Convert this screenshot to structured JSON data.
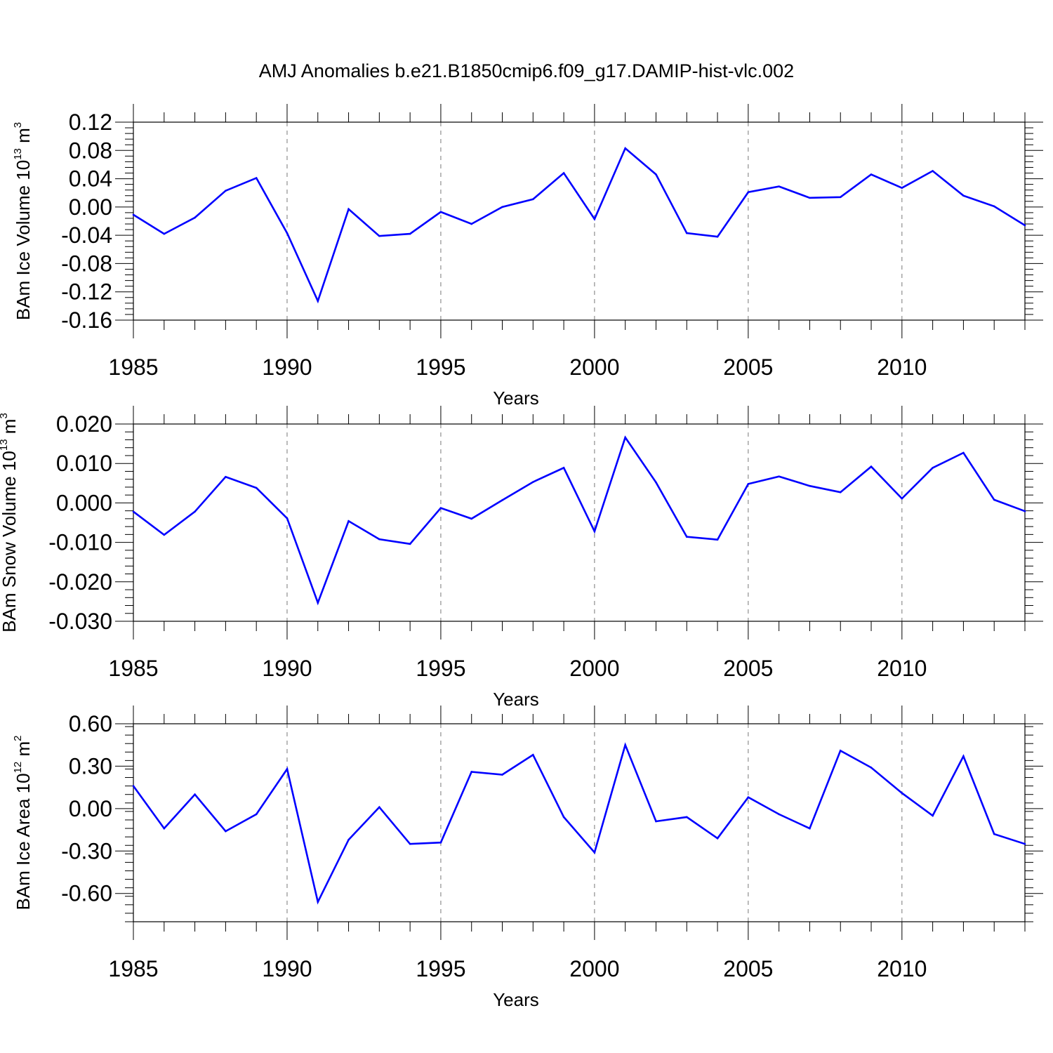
{
  "figure_title": "AMJ Anomalies b.e21.B1850cmip6.f09_g17.DAMIP-hist-vlc.002",
  "chart_data": [
    {
      "type": "line",
      "title": "AMJ Anomalies b.e21.B1850cmip6.f09_g17.DAMIP-hist-vlc.002",
      "xlabel": "Years",
      "ylabel": {
        "text": "BAm Ice Volume 10",
        "exp": "13",
        "unit": " m",
        "unit_exp": "3"
      },
      "xlim": [
        1985,
        2014
      ],
      "ylim": [
        -0.16,
        0.12
      ],
      "x_ticks": [
        1985,
        1990,
        1995,
        2000,
        2005,
        2010
      ],
      "x_tick_labels": [
        "1985",
        "1990",
        "1995",
        "2000",
        "2005",
        "2010"
      ],
      "y_ticks": [
        -0.16,
        -0.12,
        -0.08,
        -0.04,
        0.0,
        0.04,
        0.08,
        0.12
      ],
      "y_tick_labels": [
        "-0.16",
        "-0.12",
        "-0.08",
        "-0.04",
        "0.00",
        "0.04",
        "0.08",
        "0.12"
      ],
      "y_minor_step": 0.008,
      "grid": "vertical dashed at major x ticks",
      "color": "#0000ff",
      "x": [
        1985,
        1986,
        1987,
        1988,
        1989,
        1990,
        1991,
        1992,
        1993,
        1994,
        1995,
        1996,
        1997,
        1998,
        1999,
        2000,
        2001,
        2002,
        2003,
        2004,
        2005,
        2006,
        2007,
        2008,
        2009,
        2010,
        2011,
        2012,
        2013,
        2014
      ],
      "values": [
        -0.011,
        -0.038,
        -0.015,
        0.023,
        0.041,
        -0.037,
        -0.133,
        -0.003,
        -0.041,
        -0.038,
        -0.007,
        -0.024,
        0.0,
        0.011,
        0.048,
        -0.017,
        0.083,
        0.046,
        -0.037,
        -0.042,
        0.021,
        0.029,
        0.013,
        0.014,
        0.046,
        0.027,
        0.051,
        0.016,
        0.001,
        -0.026
      ]
    },
    {
      "type": "line",
      "xlabel": "Years",
      "ylabel": {
        "text": "BAm Snow Volume 10",
        "exp": "13",
        "unit": " m",
        "unit_exp": "3"
      },
      "xlim": [
        1985,
        2014
      ],
      "ylim": [
        -0.03,
        0.02
      ],
      "x_ticks": [
        1985,
        1990,
        1995,
        2000,
        2005,
        2010
      ],
      "x_tick_labels": [
        "1985",
        "1990",
        "1995",
        "2000",
        "2005",
        "2010"
      ],
      "y_ticks": [
        -0.03,
        -0.02,
        -0.01,
        0.0,
        0.01,
        0.02
      ],
      "y_tick_labels": [
        "-0.030",
        "-0.020",
        "-0.010",
        "0.000",
        "0.010",
        "0.020"
      ],
      "y_minor_step": 0.002,
      "grid": "vertical dashed at major x ticks",
      "color": "#0000ff",
      "x": [
        1985,
        1986,
        1987,
        1988,
        1989,
        1990,
        1991,
        1992,
        1993,
        1994,
        1995,
        1996,
        1997,
        1998,
        1999,
        2000,
        2001,
        2002,
        2003,
        2004,
        2005,
        2006,
        2007,
        2008,
        2009,
        2010,
        2011,
        2012,
        2013,
        2014
      ],
      "values": [
        -0.0022,
        -0.0081,
        -0.0022,
        0.0066,
        0.0038,
        -0.0039,
        -0.0253,
        -0.0046,
        -0.0092,
        -0.0104,
        -0.0013,
        -0.004,
        0.0007,
        0.0053,
        0.0089,
        -0.0072,
        0.0166,
        0.0052,
        -0.0086,
        -0.0093,
        0.0048,
        0.0067,
        0.0043,
        0.0027,
        0.0092,
        0.0011,
        0.0089,
        0.0127,
        0.0008,
        -0.0021
      ]
    },
    {
      "type": "line",
      "xlabel": "Years",
      "ylabel": {
        "text": "BAm Ice Area 10",
        "exp": "12",
        "unit": " m",
        "unit_exp": "2"
      },
      "xlim": [
        1985,
        2014
      ],
      "ylim": [
        -0.8,
        0.6
      ],
      "x_ticks": [
        1985,
        1990,
        1995,
        2000,
        2005,
        2010
      ],
      "x_tick_labels": [
        "1985",
        "1990",
        "1995",
        "2000",
        "2005",
        "2010"
      ],
      "y_ticks": [
        -0.6,
        -0.3,
        0.0,
        0.3,
        0.6
      ],
      "y_tick_labels": [
        "-0.60",
        "-0.30",
        "0.00",
        "0.30",
        "0.60"
      ],
      "y_minor_step": 0.06,
      "grid": "vertical dashed at major x ticks",
      "color": "#0000ff",
      "x": [
        1985,
        1986,
        1987,
        1988,
        1989,
        1990,
        1991,
        1992,
        1993,
        1994,
        1995,
        1996,
        1997,
        1998,
        1999,
        2000,
        2001,
        2002,
        2003,
        2004,
        2005,
        2006,
        2007,
        2008,
        2009,
        2010,
        2011,
        2012,
        2013,
        2014
      ],
      "values": [
        0.16,
        -0.14,
        0.1,
        -0.16,
        -0.04,
        0.28,
        -0.66,
        -0.22,
        0.01,
        -0.25,
        -0.24,
        0.26,
        0.24,
        0.38,
        -0.06,
        -0.31,
        0.45,
        -0.09,
        -0.06,
        -0.21,
        0.08,
        -0.04,
        -0.14,
        0.41,
        0.29,
        0.11,
        -0.05,
        0.37,
        -0.18,
        -0.25
      ]
    }
  ]
}
